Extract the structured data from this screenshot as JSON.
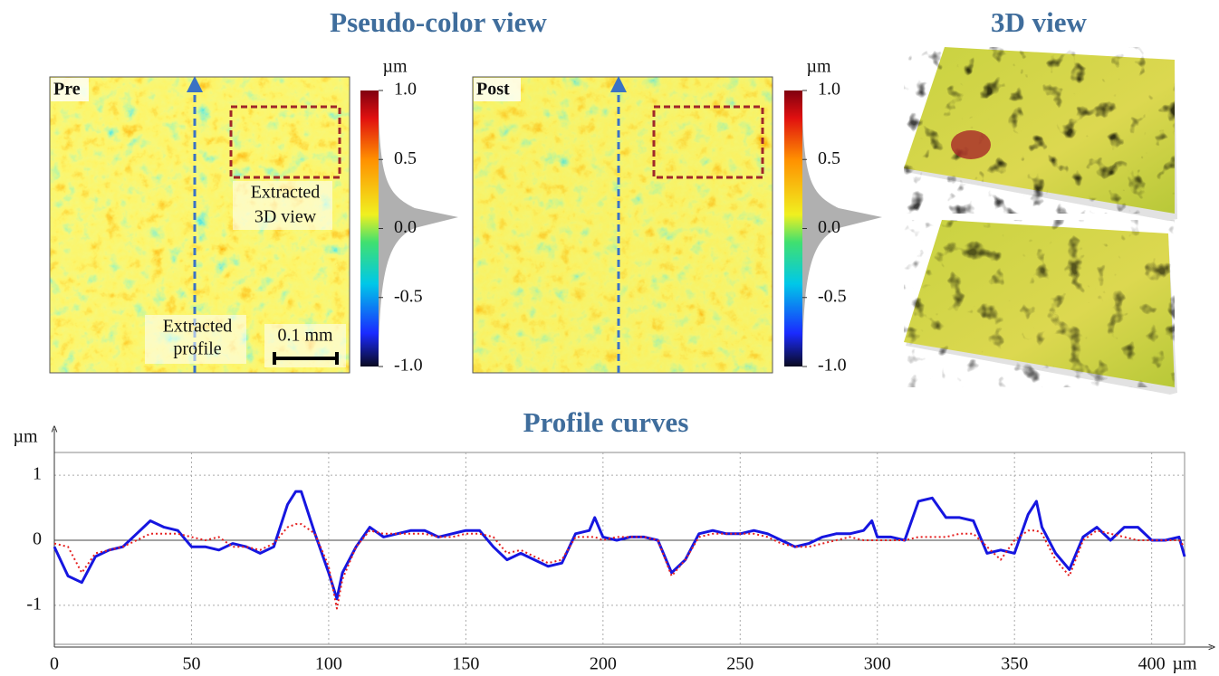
{
  "figure": {
    "title_left": "Pseudo-color view",
    "title_right": "3D view",
    "panels": [
      {
        "label": "Pre",
        "unit": "µm",
        "colorbar_lim": [
          -1,
          1
        ],
        "colorbar_ticks": [
          {
            "value": 1,
            "label": "1.0"
          },
          {
            "value": 0.5,
            "label": "0.5"
          },
          {
            "value": 0,
            "label": "0.0"
          },
          {
            "value": -0.5,
            "label": "-0.5"
          },
          {
            "value": -1,
            "label": "-1.0"
          }
        ],
        "box_label": [
          "Extracted",
          "3D view"
        ],
        "profile_label": [
          "Extracted",
          "profile"
        ],
        "scale_bar": "0.1 mm"
      },
      {
        "label": "Post",
        "unit": "µm",
        "colorbar_lim": [
          -1,
          1
        ],
        "colorbar_ticks": [
          {
            "value": 1,
            "label": "1.0"
          },
          {
            "value": 0.5,
            "label": "0.5"
          },
          {
            "value": 0,
            "label": "0.0"
          },
          {
            "value": -0.5,
            "label": "-0.5"
          },
          {
            "value": -1,
            "label": "-1.0"
          }
        ]
      }
    ]
  },
  "chart_data": {
    "type": "line",
    "title": "Profile curves",
    "x_label": "µm",
    "y_label": "µm",
    "x": [
      0,
      5,
      10,
      15,
      20,
      25,
      30,
      35,
      40,
      45,
      50,
      55,
      60,
      65,
      70,
      75,
      80,
      85,
      88,
      90,
      95,
      100,
      103,
      105,
      110,
      115,
      120,
      125,
      130,
      135,
      140,
      145,
      150,
      155,
      160,
      165,
      170,
      175,
      180,
      185,
      190,
      195,
      197,
      200,
      205,
      210,
      215,
      220,
      225,
      230,
      235,
      240,
      245,
      250,
      255,
      260,
      265,
      270,
      275,
      280,
      285,
      290,
      295,
      298,
      300,
      305,
      310,
      315,
      320,
      325,
      330,
      335,
      340,
      345,
      350,
      355,
      358,
      360,
      365,
      370,
      375,
      380,
      385,
      390,
      395,
      400,
      405,
      410,
      412
    ],
    "series": [
      {
        "color": "#1616e0",
        "style": "solid",
        "values": [
          -0.1,
          -0.55,
          -0.65,
          -0.25,
          -0.15,
          -0.1,
          0.1,
          0.3,
          0.2,
          0.15,
          -0.1,
          -0.1,
          -0.15,
          -0.05,
          -0.1,
          -0.2,
          -0.1,
          0.55,
          0.75,
          0.75,
          0.1,
          -0.5,
          -0.9,
          -0.5,
          -0.1,
          0.2,
          0.05,
          0.1,
          0.15,
          0.15,
          0.05,
          0.1,
          0.15,
          0.15,
          -0.1,
          -0.3,
          -0.2,
          -0.3,
          -0.4,
          -0.35,
          0.1,
          0.15,
          0.35,
          0.05,
          0.0,
          0.05,
          0.05,
          0.0,
          -0.5,
          -0.3,
          0.1,
          0.15,
          0.1,
          0.1,
          0.15,
          0.1,
          0.0,
          -0.1,
          -0.05,
          0.05,
          0.1,
          0.1,
          0.15,
          0.3,
          0.05,
          0.05,
          0.0,
          0.6,
          0.65,
          0.35,
          0.35,
          0.3,
          -0.2,
          -0.15,
          -0.2,
          0.4,
          0.6,
          0.2,
          -0.2,
          -0.45,
          0.05,
          0.2,
          0.0,
          0.2,
          0.2,
          0.0,
          0.0,
          0.05,
          -0.25
        ]
      },
      {
        "color": "#e52020",
        "style": "dotted",
        "values": [
          -0.05,
          -0.1,
          -0.5,
          -0.2,
          -0.15,
          -0.1,
          0.0,
          0.1,
          0.1,
          0.1,
          0.05,
          0.0,
          0.05,
          -0.1,
          -0.1,
          -0.15,
          -0.05,
          0.2,
          0.25,
          0.25,
          0.1,
          -0.4,
          -1.05,
          -0.6,
          -0.1,
          0.15,
          0.1,
          0.1,
          0.1,
          0.1,
          0.05,
          0.05,
          0.1,
          0.1,
          0.05,
          -0.2,
          -0.15,
          -0.25,
          -0.35,
          -0.3,
          0.05,
          0.05,
          0.05,
          0.0,
          0.05,
          0.05,
          0.05,
          0.0,
          -0.55,
          -0.3,
          0.05,
          0.1,
          0.1,
          0.1,
          0.1,
          0.05,
          -0.05,
          -0.1,
          -0.1,
          -0.05,
          0.0,
          0.05,
          0.0,
          0.0,
          0.0,
          0.0,
          0.0,
          0.05,
          0.05,
          0.05,
          0.1,
          0.1,
          -0.1,
          -0.3,
          0.0,
          0.15,
          0.15,
          0.1,
          -0.3,
          -0.55,
          0.0,
          0.15,
          0.1,
          0.05,
          0.0,
          0.0,
          0.0,
          0.0,
          -0.1
        ]
      }
    ],
    "xlim": [
      0,
      412
    ],
    "ylim": [
      -1.6,
      1.35
    ],
    "xticks": [
      0,
      50,
      100,
      150,
      200,
      250,
      300,
      350,
      400
    ],
    "yticks": [
      -1,
      0,
      1
    ],
    "grid": true
  }
}
